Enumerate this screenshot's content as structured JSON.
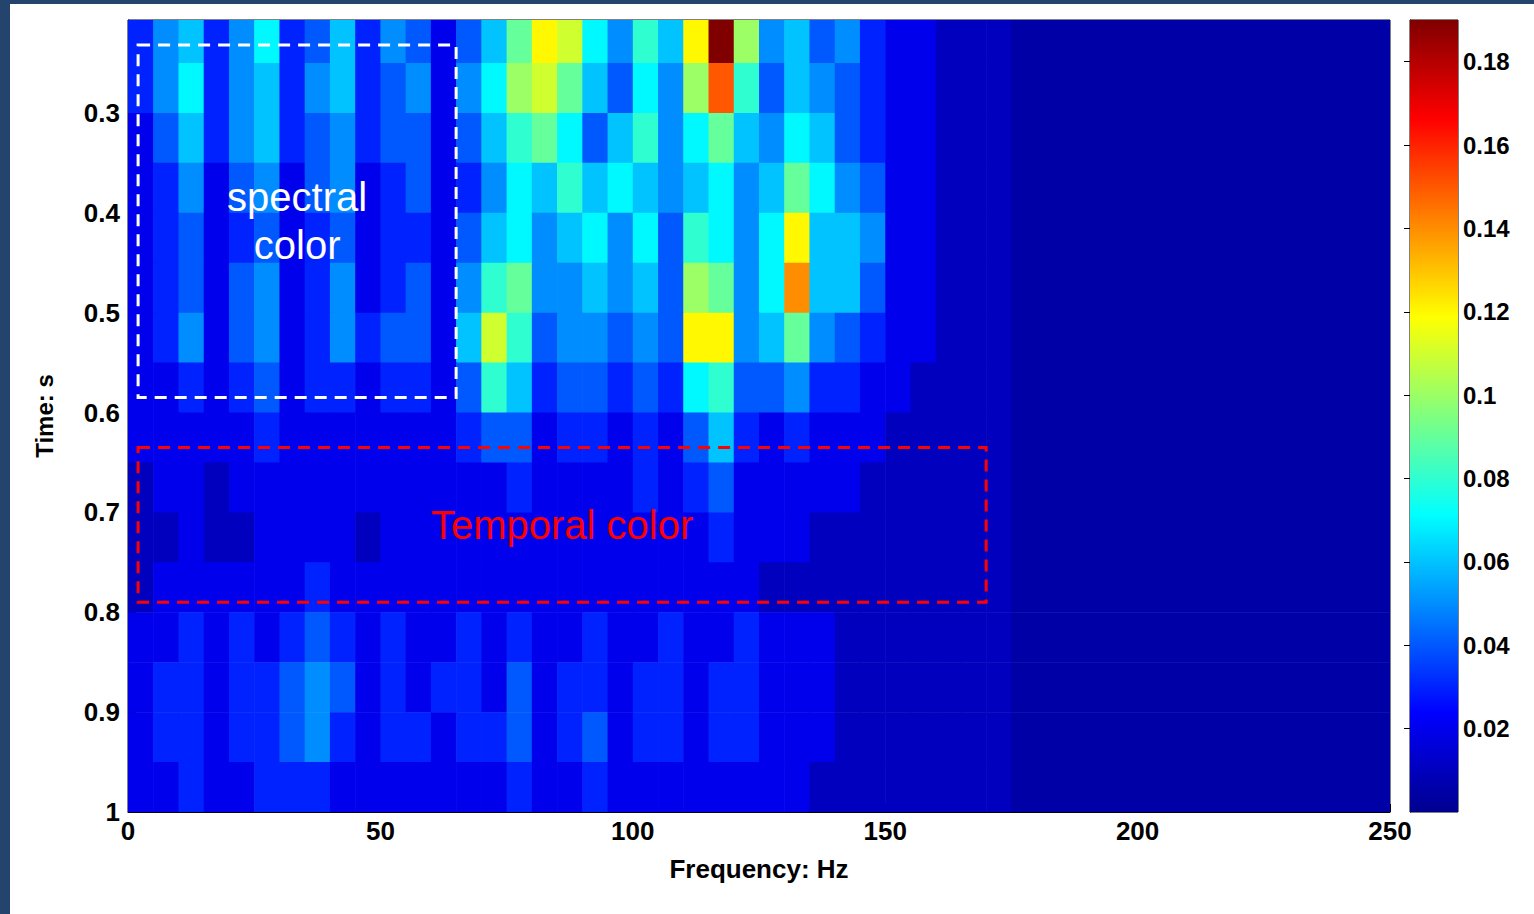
{
  "chart_data": {
    "type": "heatmap",
    "x_label": "Frequency: Hz",
    "y_label": "Time: s",
    "xlim": [
      0,
      250
    ],
    "xticks": [
      0,
      50,
      100,
      150,
      200,
      250
    ],
    "ylim": [
      0.207,
      1
    ],
    "yticks": [
      0.3,
      0.4,
      0.5,
      0.6,
      0.7,
      0.8,
      0.9,
      1
    ],
    "grid": false,
    "x_edges": [
      0,
      5,
      10,
      15,
      20,
      25,
      30,
      35,
      40,
      45,
      50,
      55,
      60,
      65,
      70,
      75,
      80,
      85,
      90,
      95,
      100,
      105,
      110,
      115,
      120,
      125,
      130,
      135,
      140,
      145,
      150,
      155,
      160,
      165,
      170,
      175,
      250
    ],
    "y_edges": [
      0.207,
      0.25,
      0.3,
      0.35,
      0.4,
      0.45,
      0.5,
      0.55,
      0.6,
      0.65,
      0.7,
      0.75,
      0.8,
      0.85,
      0.9,
      0.95,
      1
    ],
    "cells": [
      [
        0.03,
        0.05,
        0.06,
        0.03,
        0.05,
        0.07,
        0.03,
        0.04,
        0.06,
        0.03,
        0.05,
        0.04,
        0.02,
        0.04,
        0.06,
        0.09,
        0.12,
        0.11,
        0.07,
        0.05,
        0.08,
        0.06,
        0.12,
        0.19,
        0.1,
        0.05,
        0.06,
        0.04,
        0.05,
        0.03,
        0.02,
        0.02,
        0.01,
        0.01,
        0.01,
        0.005
      ],
      [
        0.03,
        0.05,
        0.07,
        0.03,
        0.05,
        0.06,
        0.03,
        0.05,
        0.06,
        0.03,
        0.04,
        0.05,
        0.02,
        0.05,
        0.07,
        0.1,
        0.11,
        0.09,
        0.06,
        0.04,
        0.07,
        0.05,
        0.1,
        0.15,
        0.08,
        0.04,
        0.06,
        0.05,
        0.04,
        0.03,
        0.02,
        0.02,
        0.01,
        0.01,
        0.01,
        0.005
      ],
      [
        0.02,
        0.04,
        0.06,
        0.03,
        0.05,
        0.06,
        0.03,
        0.04,
        0.05,
        0.03,
        0.04,
        0.04,
        0.02,
        0.04,
        0.06,
        0.08,
        0.09,
        0.07,
        0.04,
        0.06,
        0.08,
        0.05,
        0.07,
        0.09,
        0.06,
        0.05,
        0.07,
        0.06,
        0.04,
        0.03,
        0.02,
        0.02,
        0.01,
        0.01,
        0.01,
        0.005
      ],
      [
        0.02,
        0.03,
        0.05,
        0.02,
        0.04,
        0.05,
        0.02,
        0.04,
        0.05,
        0.02,
        0.03,
        0.04,
        0.02,
        0.03,
        0.05,
        0.07,
        0.06,
        0.08,
        0.06,
        0.07,
        0.06,
        0.05,
        0.06,
        0.07,
        0.05,
        0.06,
        0.09,
        0.07,
        0.05,
        0.04,
        0.02,
        0.02,
        0.01,
        0.01,
        0.01,
        0.005
      ],
      [
        0.02,
        0.03,
        0.04,
        0.02,
        0.03,
        0.04,
        0.02,
        0.03,
        0.04,
        0.02,
        0.03,
        0.03,
        0.02,
        0.04,
        0.06,
        0.07,
        0.05,
        0.06,
        0.07,
        0.05,
        0.07,
        0.04,
        0.08,
        0.07,
        0.05,
        0.07,
        0.12,
        0.06,
        0.06,
        0.05,
        0.02,
        0.02,
        0.01,
        0.01,
        0.01,
        0.005
      ],
      [
        0.02,
        0.03,
        0.04,
        0.02,
        0.04,
        0.05,
        0.02,
        0.03,
        0.05,
        0.02,
        0.03,
        0.04,
        0.02,
        0.05,
        0.08,
        0.09,
        0.05,
        0.05,
        0.06,
        0.05,
        0.06,
        0.04,
        0.1,
        0.09,
        0.05,
        0.07,
        0.14,
        0.06,
        0.06,
        0.04,
        0.02,
        0.02,
        0.01,
        0.01,
        0.01,
        0.005
      ],
      [
        0.02,
        0.03,
        0.05,
        0.02,
        0.04,
        0.05,
        0.02,
        0.03,
        0.05,
        0.03,
        0.04,
        0.04,
        0.02,
        0.06,
        0.11,
        0.08,
        0.04,
        0.05,
        0.05,
        0.04,
        0.05,
        0.04,
        0.12,
        0.12,
        0.05,
        0.06,
        0.09,
        0.05,
        0.04,
        0.03,
        0.02,
        0.02,
        0.01,
        0.01,
        0.01,
        0.005
      ],
      [
        0.02,
        0.02,
        0.03,
        0.02,
        0.03,
        0.04,
        0.02,
        0.03,
        0.03,
        0.02,
        0.03,
        0.03,
        0.02,
        0.04,
        0.08,
        0.06,
        0.03,
        0.04,
        0.04,
        0.03,
        0.04,
        0.03,
        0.07,
        0.08,
        0.04,
        0.04,
        0.05,
        0.03,
        0.03,
        0.02,
        0.02,
        0.01,
        0.01,
        0.01,
        0.01,
        0.005
      ],
      [
        0.02,
        0.02,
        0.02,
        0.02,
        0.02,
        0.03,
        0.02,
        0.02,
        0.02,
        0.02,
        0.02,
        0.02,
        0.02,
        0.03,
        0.04,
        0.04,
        0.02,
        0.03,
        0.03,
        0.02,
        0.03,
        0.02,
        0.04,
        0.06,
        0.03,
        0.02,
        0.03,
        0.02,
        0.02,
        0.02,
        0.01,
        0.01,
        0.01,
        0.01,
        0.01,
        0.005
      ],
      [
        0.01,
        0.02,
        0.02,
        0.01,
        0.02,
        0.02,
        0.02,
        0.02,
        0.02,
        0.02,
        0.02,
        0.02,
        0.02,
        0.02,
        0.02,
        0.03,
        0.02,
        0.02,
        0.02,
        0.02,
        0.03,
        0.02,
        0.03,
        0.04,
        0.02,
        0.02,
        0.02,
        0.02,
        0.02,
        0.01,
        0.01,
        0.01,
        0.01,
        0.01,
        0.01,
        0.005
      ],
      [
        0.01,
        0.01,
        0.02,
        0.01,
        0.01,
        0.02,
        0.02,
        0.02,
        0.02,
        0.01,
        0.02,
        0.02,
        0.02,
        0.02,
        0.02,
        0.02,
        0.02,
        0.02,
        0.02,
        0.02,
        0.02,
        0.02,
        0.02,
        0.03,
        0.02,
        0.02,
        0.02,
        0.01,
        0.01,
        0.01,
        0.01,
        0.01,
        0.01,
        0.01,
        0.01,
        0.005
      ],
      [
        0.01,
        0.02,
        0.02,
        0.02,
        0.02,
        0.02,
        0.02,
        0.03,
        0.02,
        0.02,
        0.02,
        0.02,
        0.02,
        0.02,
        0.02,
        0.02,
        0.02,
        0.02,
        0.02,
        0.02,
        0.02,
        0.02,
        0.02,
        0.02,
        0.02,
        0.01,
        0.01,
        0.01,
        0.01,
        0.01,
        0.01,
        0.01,
        0.01,
        0.01,
        0.01,
        0.005
      ],
      [
        0.02,
        0.02,
        0.03,
        0.02,
        0.03,
        0.02,
        0.03,
        0.04,
        0.03,
        0.02,
        0.03,
        0.02,
        0.02,
        0.03,
        0.02,
        0.03,
        0.02,
        0.02,
        0.03,
        0.02,
        0.02,
        0.03,
        0.02,
        0.02,
        0.03,
        0.02,
        0.02,
        0.02,
        0.01,
        0.01,
        0.01,
        0.01,
        0.01,
        0.01,
        0.01,
        0.005
      ],
      [
        0.02,
        0.03,
        0.03,
        0.02,
        0.03,
        0.03,
        0.04,
        0.05,
        0.04,
        0.02,
        0.03,
        0.02,
        0.03,
        0.03,
        0.02,
        0.04,
        0.02,
        0.03,
        0.03,
        0.02,
        0.03,
        0.03,
        0.02,
        0.03,
        0.03,
        0.02,
        0.02,
        0.02,
        0.01,
        0.01,
        0.01,
        0.01,
        0.01,
        0.01,
        0.01,
        0.005
      ],
      [
        0.02,
        0.03,
        0.03,
        0.02,
        0.03,
        0.03,
        0.04,
        0.05,
        0.03,
        0.02,
        0.03,
        0.03,
        0.02,
        0.03,
        0.03,
        0.04,
        0.02,
        0.03,
        0.04,
        0.02,
        0.03,
        0.03,
        0.02,
        0.03,
        0.03,
        0.02,
        0.02,
        0.02,
        0.01,
        0.01,
        0.01,
        0.01,
        0.01,
        0.01,
        0.01,
        0.005
      ],
      [
        0.02,
        0.02,
        0.03,
        0.02,
        0.02,
        0.03,
        0.03,
        0.03,
        0.02,
        0.02,
        0.02,
        0.02,
        0.02,
        0.02,
        0.02,
        0.03,
        0.02,
        0.02,
        0.03,
        0.02,
        0.02,
        0.02,
        0.02,
        0.02,
        0.02,
        0.02,
        0.02,
        0.01,
        0.01,
        0.01,
        0.01,
        0.01,
        0.01,
        0.01,
        0.01,
        0.005
      ]
    ],
    "colorbar": {
      "range": [
        0,
        0.19
      ],
      "ticks": [
        0.02,
        0.04,
        0.06,
        0.08,
        0.1,
        0.12,
        0.14,
        0.16,
        0.18
      ]
    },
    "annotations": [
      {
        "text": "spectral color",
        "color": "#ffffff",
        "x": [
          2,
          65
        ],
        "y": [
          0.232,
          0.585
        ]
      },
      {
        "text": "Temporal color",
        "color": "#ff0000",
        "x": [
          2,
          170
        ],
        "y": [
          0.635,
          0.79
        ]
      }
    ]
  }
}
